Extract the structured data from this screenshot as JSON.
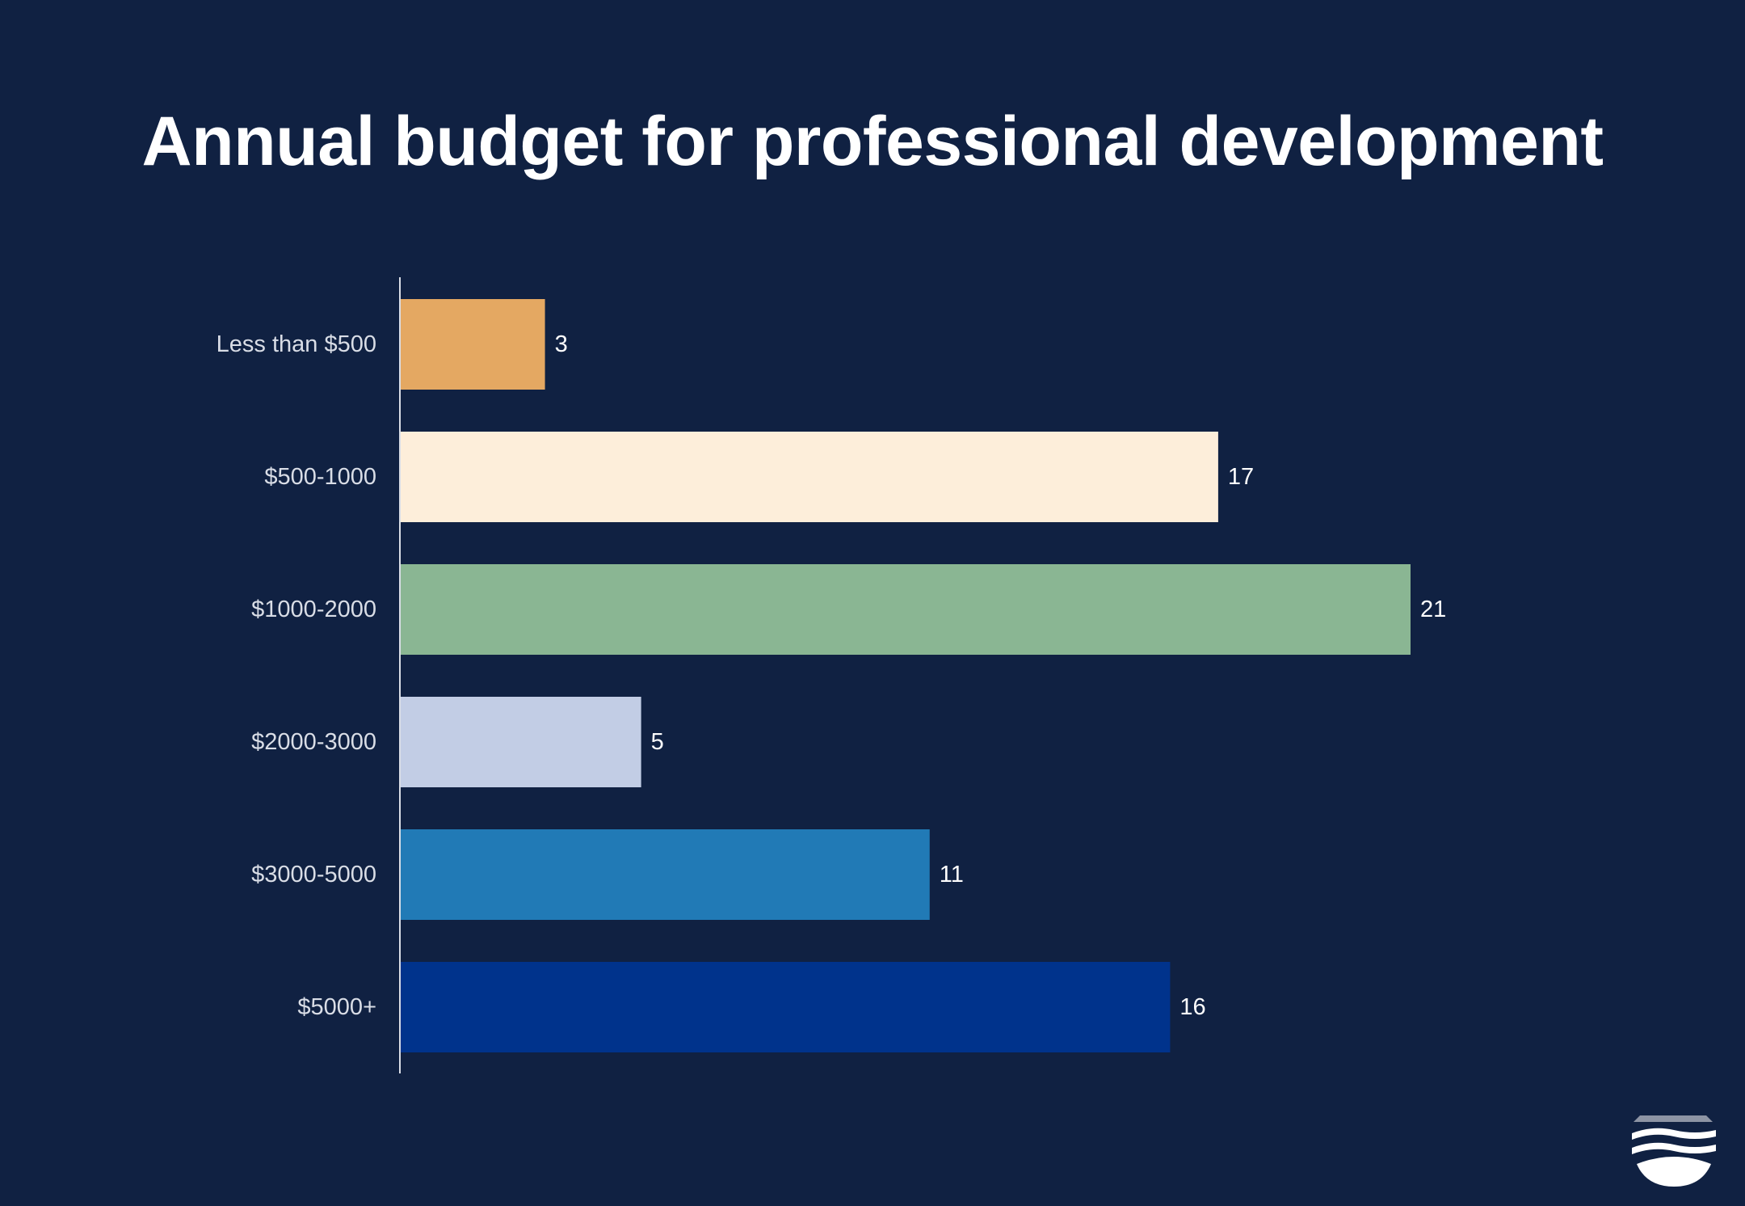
{
  "chart_data": {
    "type": "bar",
    "orientation": "horizontal",
    "title": "Annual budget for professional development",
    "xlabel": "",
    "ylabel": "",
    "categories": [
      "Less than $500",
      "$500-1000",
      "$1000-2000",
      "$2000-3000",
      "$3000-5000",
      "$5000+"
    ],
    "values": [
      3,
      17,
      21,
      5,
      11,
      16
    ],
    "colors": [
      "#e4a862",
      "#fdeeda",
      "#8ab693",
      "#c2cde5",
      "#217ab6",
      "#00338c"
    ],
    "xlim": [
      0,
      21
    ],
    "grid": false,
    "data_labels": true
  },
  "logo": {
    "icon": "brand-logo-icon"
  },
  "colors": {
    "background": "#102142",
    "title": "#ffffff",
    "axis": "#d9dde6"
  }
}
